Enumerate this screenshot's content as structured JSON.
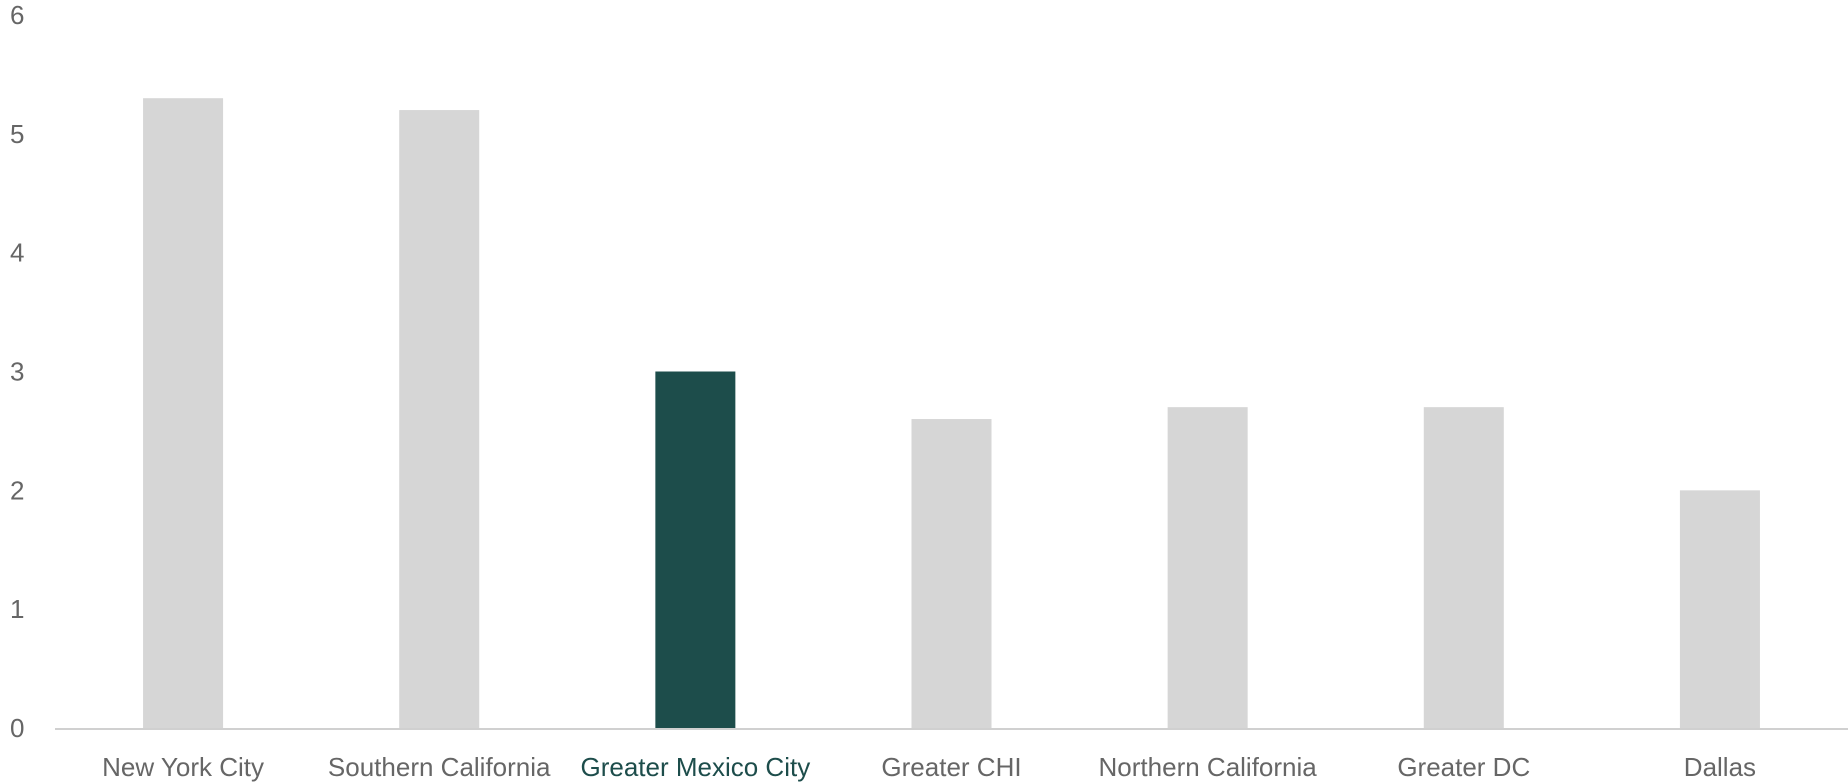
{
  "chart_data": {
    "type": "bar",
    "title": "",
    "xlabel": "",
    "ylabel": "",
    "categories": [
      "New York City",
      "Southern California",
      "Greater Mexico City",
      "Greater CHI",
      "Northern California",
      "Greater DC",
      "Dallas"
    ],
    "values": [
      5.3,
      5.2,
      3.0,
      2.6,
      2.7,
      2.7,
      2.0
    ],
    "highlight": "Greater Mexico City",
    "ylim": [
      0,
      6
    ],
    "yticks": [
      0,
      1,
      2,
      3,
      4,
      5,
      6
    ],
    "grid": false,
    "legend": "none",
    "colors": {
      "default_bar": "#d6d6d6",
      "highlight_bar": "#1d4d4b",
      "axis_line": "#d0d0d0",
      "tick_text": "#666666",
      "highlight_text": "#1d4d4b"
    }
  }
}
